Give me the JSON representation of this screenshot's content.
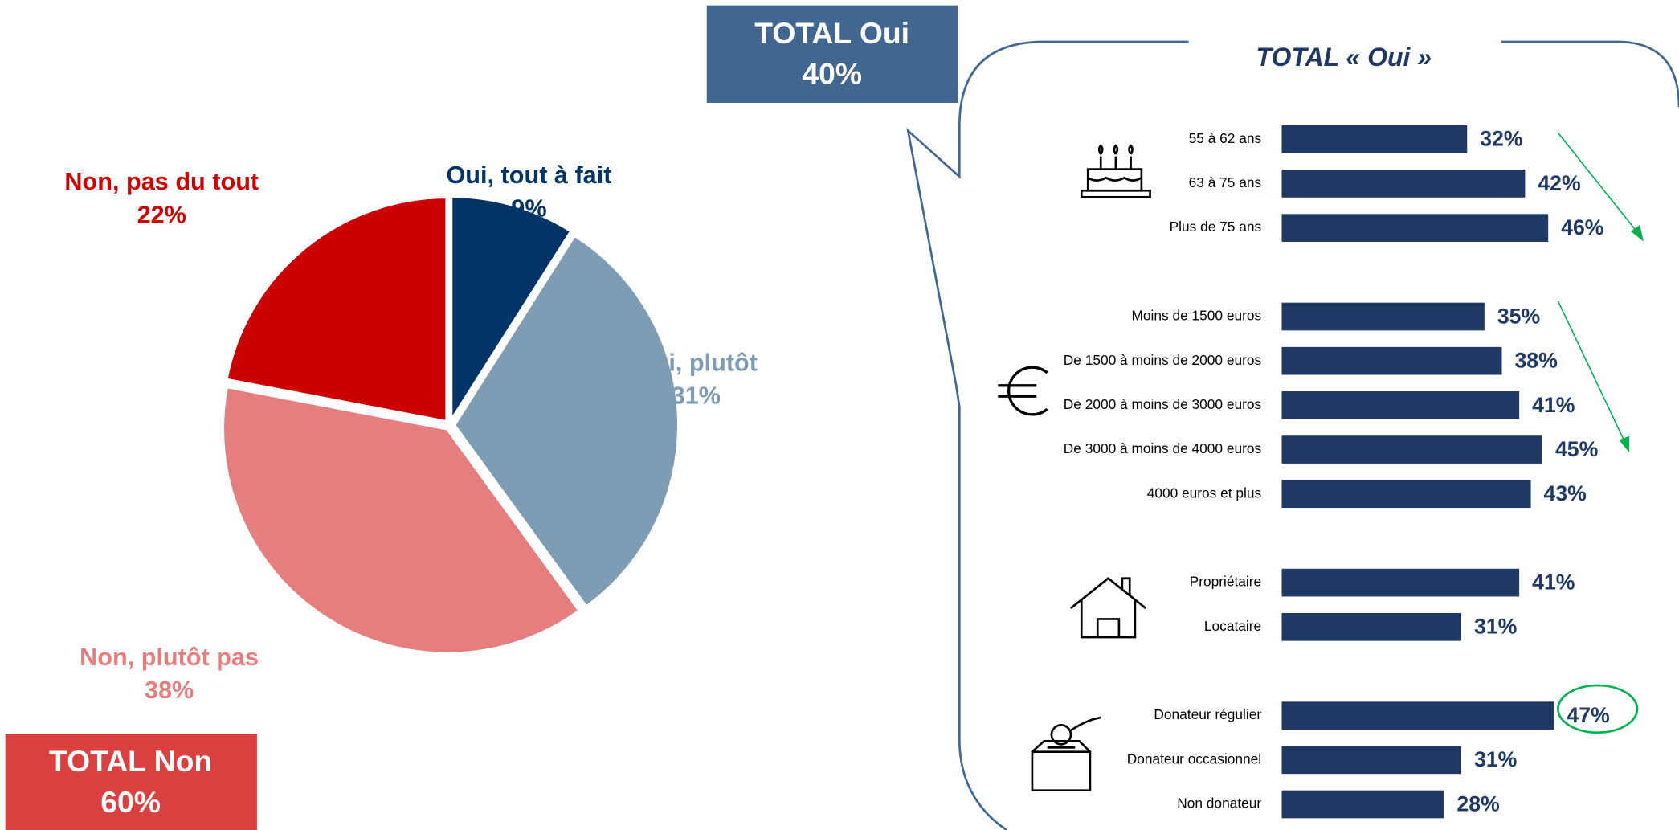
{
  "chart_data": [
    {
      "type": "pie",
      "categories": [
        "Oui, tout à fait",
        "Oui, plutôt",
        "Non, plutôt pas",
        "Non, pas du tout"
      ],
      "values": [
        9,
        31,
        38,
        22
      ],
      "value_labels": [
        "9%",
        "31%",
        "38%",
        "22%"
      ],
      "colors": [
        "#003366",
        "#7f9cb5",
        "#e57f7f",
        "#cc0000"
      ],
      "totals": [
        {
          "label": "TOTAL Oui",
          "value_label": "40%",
          "color": "#41668f"
        },
        {
          "label": "TOTAL Non",
          "value_label": "60%",
          "color": "#d94040"
        }
      ]
    },
    {
      "type": "barh",
      "title": "TOTAL « Oui »",
      "categories": [
        "55 à 62 ans",
        "63 à 75 ans",
        "Plus de 75 ans",
        "Moins de 1500 euros",
        "De 1500 à moins de 2000 euros",
        "De 2000 à moins de 3000 euros",
        "De 3000 à moins de 4000 euros",
        "4000 euros et plus",
        "Propriétaire",
        "Locataire",
        "Donateur régulier",
        "Donateur occasionnel",
        "Non donateur"
      ],
      "values": [
        32,
        42,
        46,
        35,
        38,
        41,
        45,
        43,
        41,
        31,
        47,
        31,
        28
      ],
      "value_labels": [
        "32%",
        "42%",
        "46%",
        "35%",
        "38%",
        "41%",
        "45%",
        "43%",
        "41%",
        "31%",
        "47%",
        "31%",
        "28%"
      ],
      "color": "#1f3864"
    }
  ]
}
